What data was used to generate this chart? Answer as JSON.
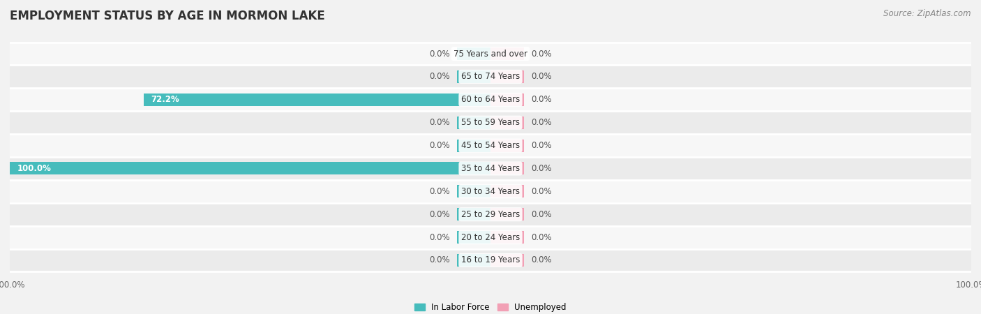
{
  "title": "EMPLOYMENT STATUS BY AGE IN MORMON LAKE",
  "source": "Source: ZipAtlas.com",
  "categories": [
    "16 to 19 Years",
    "20 to 24 Years",
    "25 to 29 Years",
    "30 to 34 Years",
    "35 to 44 Years",
    "45 to 54 Years",
    "55 to 59 Years",
    "60 to 64 Years",
    "65 to 74 Years",
    "75 Years and over"
  ],
  "labor_force": [
    0.0,
    0.0,
    0.0,
    0.0,
    100.0,
    0.0,
    0.0,
    72.2,
    0.0,
    0.0
  ],
  "unemployed": [
    0.0,
    0.0,
    0.0,
    0.0,
    0.0,
    0.0,
    0.0,
    0.0,
    0.0,
    0.0
  ],
  "labor_force_color": "#46BCBC",
  "unemployed_color": "#F2A0B5",
  "background_color": "#F2F2F2",
  "row_bg_light": "#F7F7F7",
  "row_bg_dark": "#EBEBEB",
  "title_fontsize": 12,
  "source_fontsize": 8.5,
  "label_fontsize": 8.5,
  "cat_fontsize": 8.5,
  "tick_fontsize": 8.5,
  "xlim": [
    -100,
    100
  ],
  "stub_size": 7,
  "legend_labels": [
    "In Labor Force",
    "Unemployed"
  ],
  "legend_colors": [
    "#46BCBC",
    "#F2A0B5"
  ]
}
